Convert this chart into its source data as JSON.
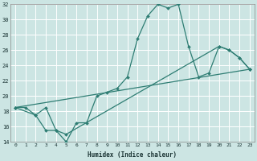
{
  "title": "",
  "xlabel": "Humidex (Indice chaleur)",
  "xlim": [
    -0.5,
    23.5
  ],
  "ylim": [
    14,
    32
  ],
  "xticks": [
    0,
    1,
    2,
    3,
    4,
    5,
    6,
    7,
    8,
    9,
    10,
    11,
    12,
    13,
    14,
    15,
    16,
    17,
    18,
    19,
    20,
    21,
    22,
    23
  ],
  "yticks": [
    14,
    16,
    18,
    20,
    22,
    24,
    26,
    28,
    30,
    32
  ],
  "bg_color": "#cce5e3",
  "grid_color": "#ffffff",
  "line_color": "#2e7d73",
  "line1_x": [
    0,
    1,
    2,
    3,
    4,
    5,
    6,
    7,
    8,
    9,
    10,
    11,
    12,
    13,
    14,
    15,
    16,
    17,
    18,
    19,
    20,
    21,
    22,
    23
  ],
  "line1_y": [
    18.5,
    18.5,
    17.5,
    15.5,
    15.5,
    14.0,
    16.5,
    16.5,
    20.0,
    20.5,
    21.0,
    22.5,
    27.5,
    30.5,
    32.0,
    31.5,
    32.0,
    26.5,
    22.5,
    23.0,
    26.5,
    26.0,
    25.0,
    23.5
  ],
  "line2_x": [
    0,
    2,
    3,
    4,
    5,
    20,
    21,
    22,
    23
  ],
  "line2_y": [
    18.5,
    17.5,
    18.5,
    15.5,
    15.0,
    26.5,
    26.0,
    25.0,
    23.5
  ],
  "line3_x": [
    0,
    23
  ],
  "line3_y": [
    18.5,
    23.5
  ]
}
